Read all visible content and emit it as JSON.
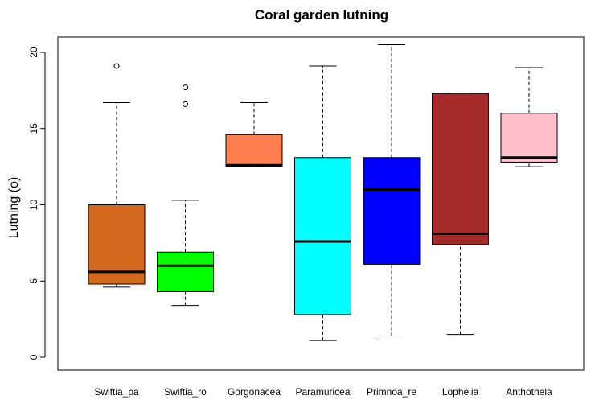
{
  "chart_data": {
    "type": "boxplot",
    "title": "Coral garden lutning",
    "xlabel": "",
    "ylabel": "Lutning (o)",
    "ylim": [
      0,
      21
    ],
    "yticks": [
      0,
      5,
      10,
      15,
      20
    ],
    "grid": false,
    "legend": "none",
    "categories": [
      "Swiftia_pa",
      "Swiftia_ro",
      "Gorgonacea",
      "Paramuricea",
      "Primnoa_re",
      "Lophelia",
      "Anthothela"
    ],
    "boxes": [
      {
        "name": "Swiftia_pa",
        "whisker_low": 4.6,
        "q1": 4.8,
        "median": 5.6,
        "q3": 10.0,
        "whisker_high": 16.7,
        "outliers": [
          19.1
        ],
        "color": "#D2691E"
      },
      {
        "name": "Swiftia_ro",
        "whisker_low": 3.4,
        "q1": 4.3,
        "median": 6.0,
        "q3": 6.9,
        "whisker_high": 10.3,
        "outliers": [
          16.6,
          17.7
        ],
        "color": "#00FF00"
      },
      {
        "name": "Gorgonacea",
        "whisker_low": 12.5,
        "q1": 12.5,
        "median": 12.6,
        "q3": 14.6,
        "whisker_high": 16.7,
        "outliers": [],
        "color": "#FF7F50"
      },
      {
        "name": "Paramuricea",
        "whisker_low": 1.1,
        "q1": 2.8,
        "median": 7.6,
        "q3": 13.1,
        "whisker_high": 19.1,
        "outliers": [],
        "color": "#00FFFF"
      },
      {
        "name": "Primnoa_re",
        "whisker_low": 1.4,
        "q1": 6.1,
        "median": 11.0,
        "q3": 13.1,
        "whisker_high": 20.5,
        "outliers": [],
        "color": "#0000FF"
      },
      {
        "name": "Lophelia",
        "whisker_low": 1.5,
        "q1": 7.4,
        "median": 8.1,
        "q3": 17.3,
        "whisker_high": 17.3,
        "outliers": [],
        "color": "#A52A2A"
      },
      {
        "name": "Anthothela",
        "whisker_low": 12.5,
        "q1": 12.8,
        "median": 13.1,
        "q3": 16.0,
        "whisker_high": 19.0,
        "outliers": [],
        "color": "#FFC0CB"
      }
    ]
  }
}
